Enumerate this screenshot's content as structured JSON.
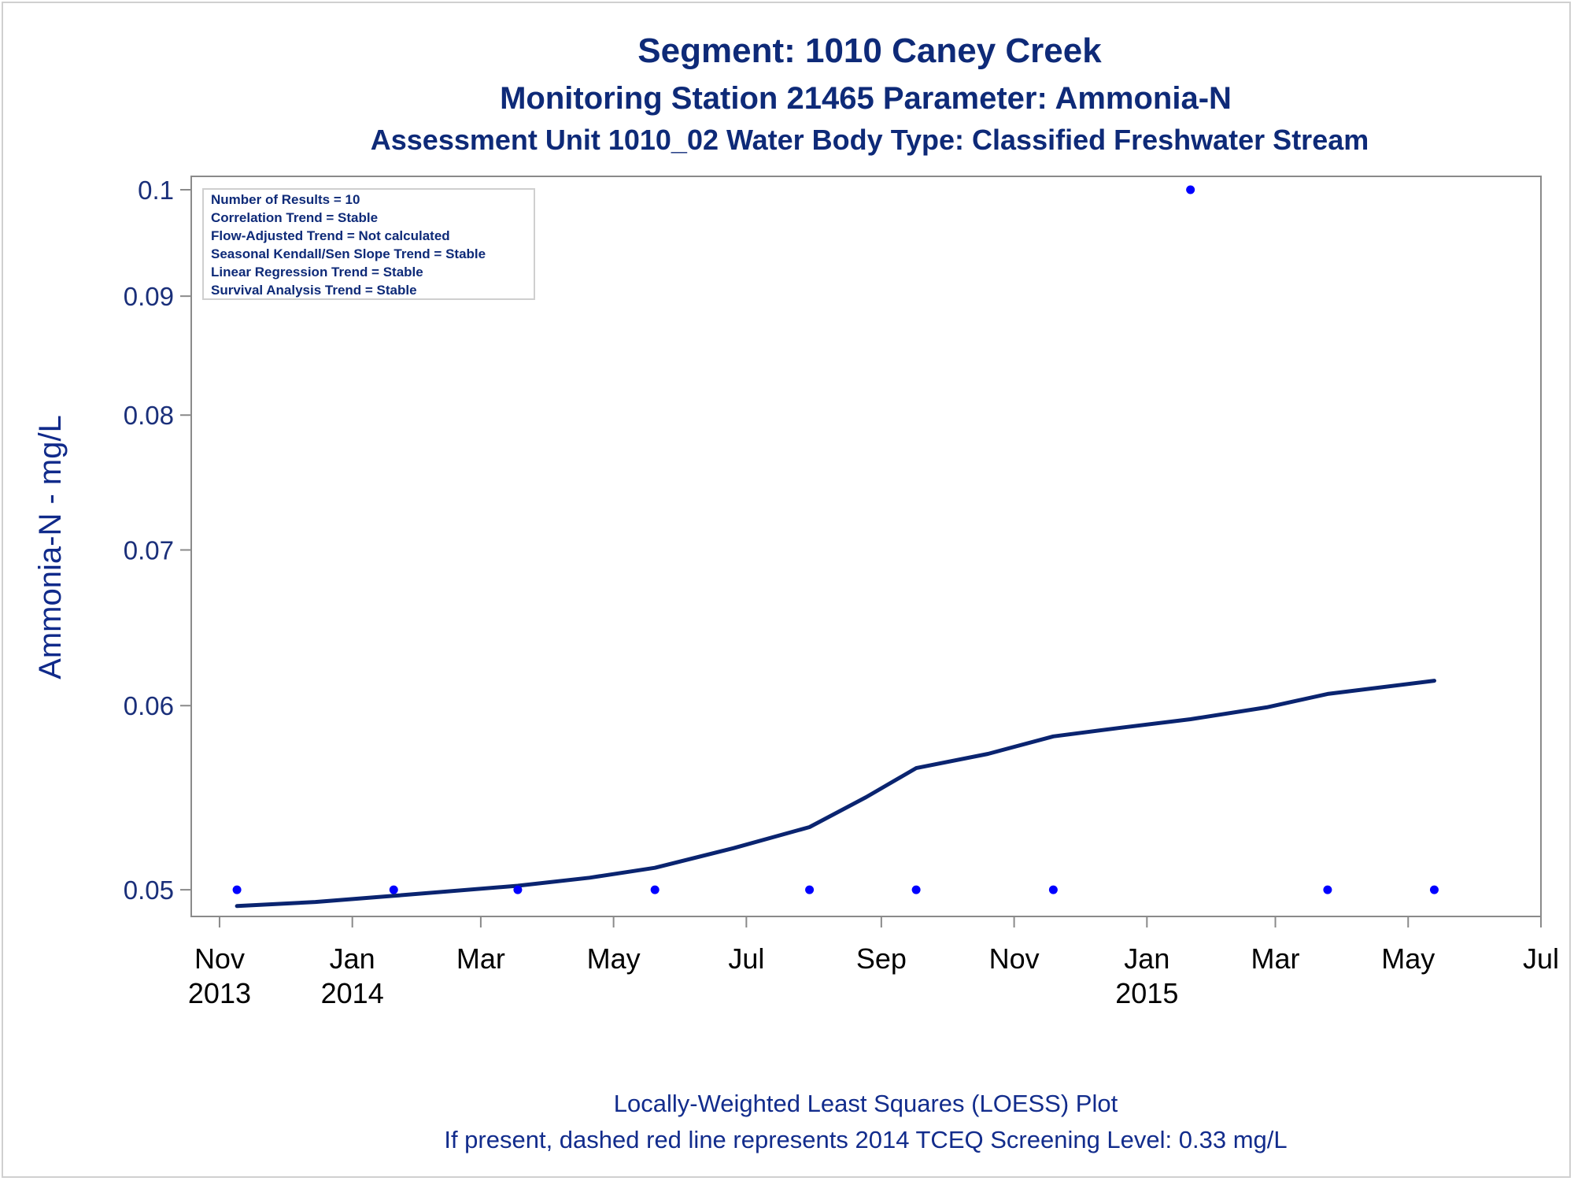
{
  "colors": {
    "title": "#0e2a78",
    "point": "#0000ff",
    "loess_line": "#0a2470",
    "axis": "#8a8a8a"
  },
  "chart_data": {
    "type": "scatter",
    "title": "Segment: 1010  Caney Creek",
    "subtitle": "Monitoring Station 21465 Parameter: Ammonia-N",
    "subtitle2": "Assessment Unit 1010_02   Water Body Type: Classified Freshwater Stream",
    "xlabel": "",
    "ylabel": "Ammonia-N - mg/L",
    "y_scale": "log",
    "ylim": [
      0.0495,
      0.1
    ],
    "xlim": [
      "2013-10-19",
      "2015-07-01"
    ],
    "y_ticks": [
      {
        "value": 0.05,
        "label": "0.05"
      },
      {
        "value": 0.06,
        "label": "0.06"
      },
      {
        "value": 0.07,
        "label": "0.07"
      },
      {
        "value": 0.08,
        "label": "0.08"
      },
      {
        "value": 0.09,
        "label": "0.09"
      },
      {
        "value": 0.1,
        "label": "0.1"
      }
    ],
    "x_ticks": [
      {
        "date": "2013-11-01",
        "label": "Nov",
        "label2": "2013"
      },
      {
        "date": "2014-01-01",
        "label": "Jan",
        "label2": "2014"
      },
      {
        "date": "2014-03-01",
        "label": "Mar",
        "label2": ""
      },
      {
        "date": "2014-05-01",
        "label": "May",
        "label2": ""
      },
      {
        "date": "2014-07-01",
        "label": "Jul",
        "label2": ""
      },
      {
        "date": "2014-09-01",
        "label": "Sep",
        "label2": ""
      },
      {
        "date": "2014-11-01",
        "label": "Nov",
        "label2": ""
      },
      {
        "date": "2015-01-01",
        "label": "Jan",
        "label2": "2015"
      },
      {
        "date": "2015-03-01",
        "label": "Mar",
        "label2": ""
      },
      {
        "date": "2015-05-01",
        "label": "May",
        "label2": ""
      },
      {
        "date": "2015-07-01",
        "label": "Jul",
        "label2": ""
      }
    ],
    "points": [
      {
        "x": "2013-11-09",
        "y": 0.05
      },
      {
        "x": "2014-01-20",
        "y": 0.05
      },
      {
        "x": "2014-03-18",
        "y": 0.05
      },
      {
        "x": "2014-05-20",
        "y": 0.05
      },
      {
        "x": "2014-07-30",
        "y": 0.05
      },
      {
        "x": "2014-09-17",
        "y": 0.05
      },
      {
        "x": "2014-11-19",
        "y": 0.05
      },
      {
        "x": "2015-01-21",
        "y": 0.1
      },
      {
        "x": "2015-03-25",
        "y": 0.05
      },
      {
        "x": "2015-05-13",
        "y": 0.05
      }
    ],
    "loess": [
      {
        "x": "2013-11-09",
        "y": 0.0492
      },
      {
        "x": "2013-12-15",
        "y": 0.0494
      },
      {
        "x": "2014-01-20",
        "y": 0.0497
      },
      {
        "x": "2014-03-18",
        "y": 0.0502
      },
      {
        "x": "2014-04-20",
        "y": 0.0506
      },
      {
        "x": "2014-05-20",
        "y": 0.0511
      },
      {
        "x": "2014-06-25",
        "y": 0.0521
      },
      {
        "x": "2014-07-30",
        "y": 0.0532
      },
      {
        "x": "2014-08-25",
        "y": 0.0548
      },
      {
        "x": "2014-09-17",
        "y": 0.0564
      },
      {
        "x": "2014-10-20",
        "y": 0.0572
      },
      {
        "x": "2014-11-19",
        "y": 0.0582
      },
      {
        "x": "2014-12-20",
        "y": 0.0587
      },
      {
        "x": "2015-01-21",
        "y": 0.0592
      },
      {
        "x": "2015-02-25",
        "y": 0.0599
      },
      {
        "x": "2015-03-25",
        "y": 0.0607
      },
      {
        "x": "2015-05-13",
        "y": 0.0615
      }
    ],
    "stats_box": [
      "Number of Results = 10",
      "Correlation Trend = Stable",
      "Flow-Adjusted Trend = Not calculated",
      "Seasonal Kendall/Sen Slope Trend = Stable",
      "Linear Regression Trend = Stable",
      "Survival Analysis Trend = Stable"
    ],
    "footnotes": [
      "Locally-Weighted Least Squares (LOESS) Plot",
      "If present, dashed red line represents 2014 TCEQ Screening Level: 0.33 mg/L"
    ],
    "grid": false,
    "legend": "none"
  }
}
